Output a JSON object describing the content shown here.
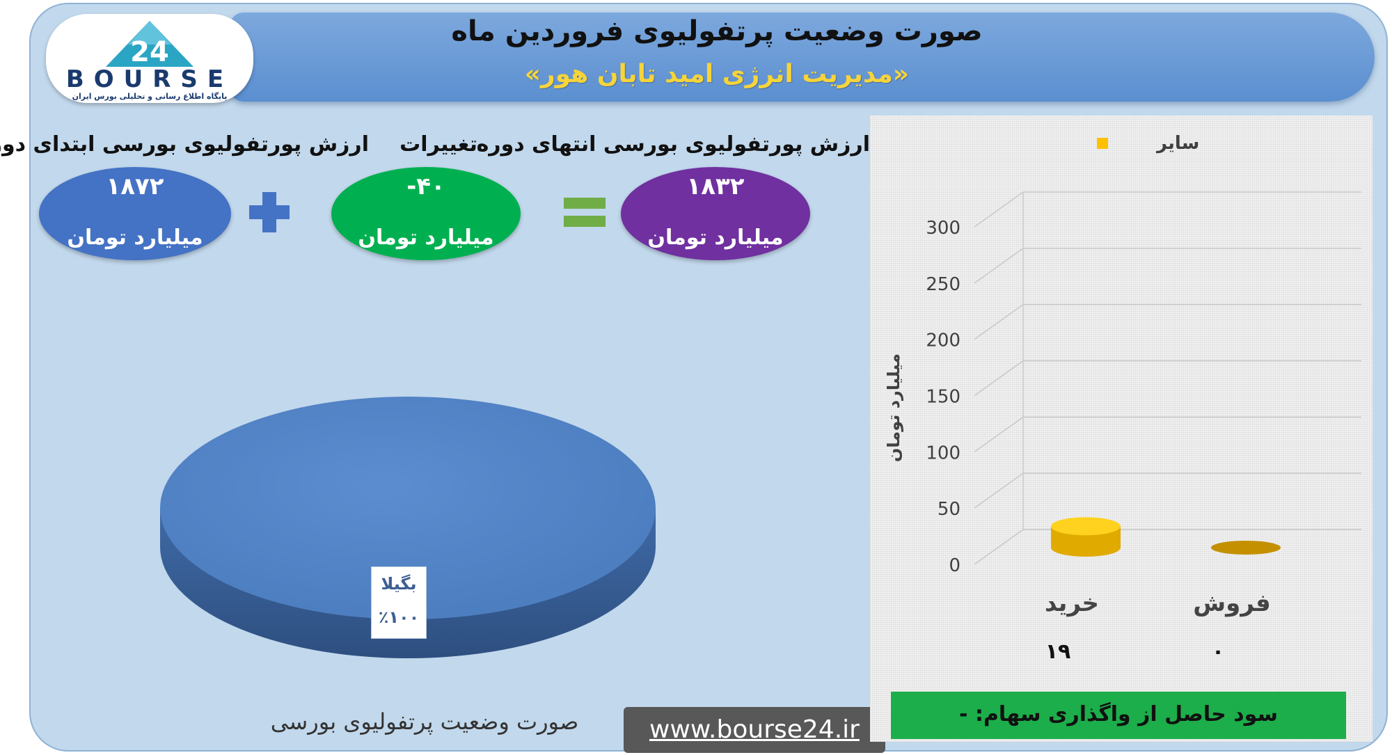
{
  "header": {
    "title": "صورت وضعیت پرتفولیوی فروردین ماه",
    "subtitle": "«مدیریت انرژی امید تابان هور»"
  },
  "logo": {
    "number": "24",
    "wordmark": "BOURSE",
    "tagline": "پایگاه اطلاع رسانی و تحلیلی بورس ایران"
  },
  "summary": {
    "start": {
      "label": "ارزش پورتفولیوی بورسی ابتدای دوره",
      "value": "۱۸۷۲",
      "unit": "میلیارد تومان",
      "color": "#4472c4"
    },
    "change": {
      "label": "تغییرات",
      "value": "-۴۰",
      "unit": "میلیارد تومان",
      "color": "#00b050"
    },
    "end": {
      "label": "ارزش پورتفولیوی بورسی انتهای دوره",
      "value": "۱۸۳۲",
      "unit": "میلیارد تومان",
      "color": "#7030a0"
    },
    "plus_symbol": "+",
    "equals_symbol": "=",
    "plus_color": "#4472c4",
    "equals_color": "#70ad47"
  },
  "pie": {
    "caption": "صورت وضعیت پرتفولیوی بورسی",
    "slice_name": "بگیلا",
    "slice_percent": "٪۱۰۰",
    "color": "#4f81bd"
  },
  "footer": {
    "url": "www.bourse24.ir",
    "profit_text": "سود حاصل از واگذاری سهام: -"
  },
  "chart_data": [
    {
      "type": "pie",
      "categories": [
        "بگیلا"
      ],
      "values": [
        100
      ],
      "labels": [
        "٪۱۰۰"
      ],
      "title": "صورت وضعیت پرتفولیوی بورسی"
    },
    {
      "type": "bar",
      "style": "3d-cylinder",
      "categories": [
        "خرید",
        "فروش"
      ],
      "series": [
        {
          "name": "سایر",
          "values": [
            19,
            0
          ],
          "color": "#ffc000"
        }
      ],
      "value_labels": [
        "۱۹",
        "۰"
      ],
      "ylabel": "میلیارد تومان",
      "ylim": [
        0,
        300
      ],
      "yticks": [
        "0",
        "50",
        "100",
        "150",
        "200",
        "250",
        "300"
      ],
      "legend": "top",
      "grid": true
    }
  ]
}
